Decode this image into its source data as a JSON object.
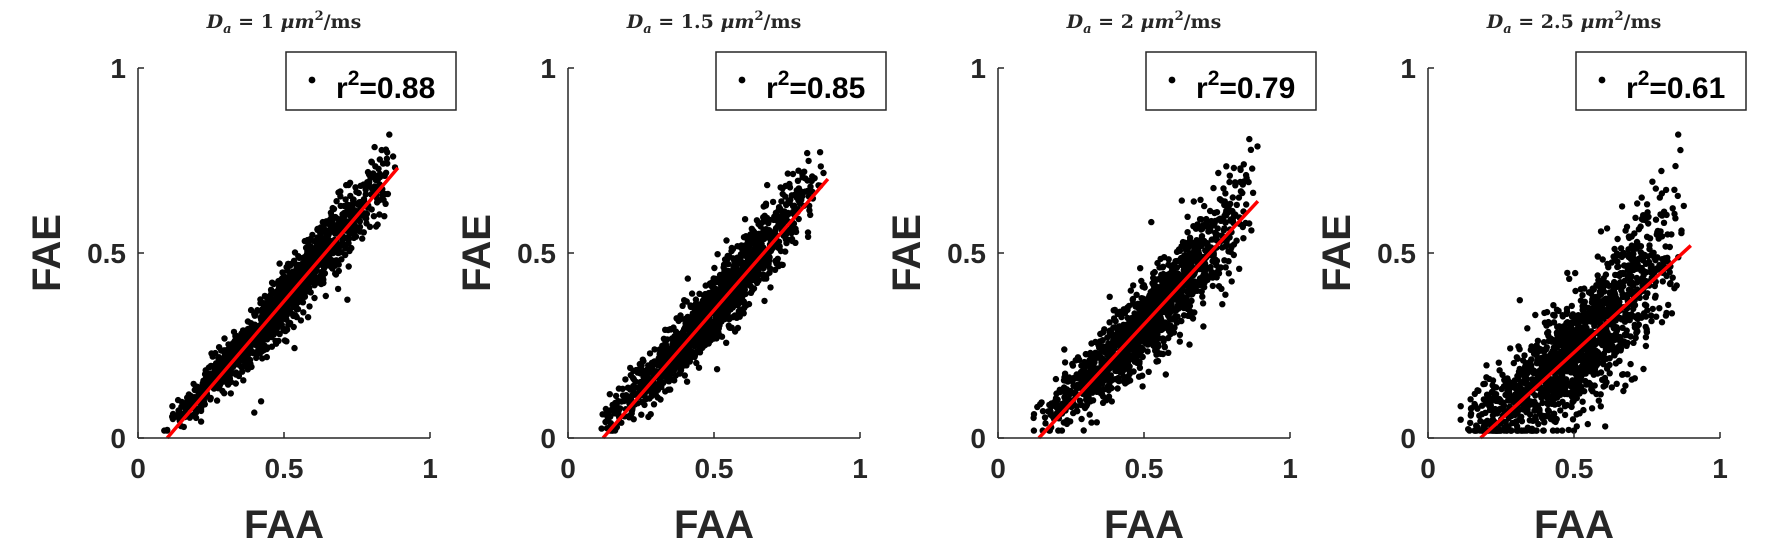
{
  "colors": {
    "points": "#000000",
    "fit_line": "#ff0000",
    "axes": "#262626",
    "legend_border": "#262626"
  },
  "chart_data": [
    {
      "type": "scatter",
      "title_parts": {
        "var": "D",
        "sub": "a",
        "value": "1",
        "unit": "μm",
        "sup": "2",
        "suffix": "/ms"
      },
      "xlabel": "FAA",
      "ylabel": "FAE",
      "xlim": [
        0,
        1
      ],
      "ylim": [
        0,
        1
      ],
      "xticks": [
        "0",
        "0.5",
        "1"
      ],
      "yticks": [
        "0",
        "0.5",
        "1"
      ],
      "legend": {
        "base": "r",
        "sup": "2",
        "value": "=0.88",
        "placement": "top-right"
      },
      "fit_line": [
        [
          0.1,
          0.0
        ],
        [
          0.89,
          0.73
        ]
      ],
      "point_cloud": {
        "x_range": [
          0.08,
          0.89
        ],
        "slope": 0.92,
        "intercept": -0.09,
        "curvature": 0.3,
        "spread": 0.035,
        "count": 1400
      }
    },
    {
      "type": "scatter",
      "title_parts": {
        "var": "D",
        "sub": "a",
        "value": "1.5",
        "unit": "μm",
        "sup": "2",
        "suffix": "/ms"
      },
      "xlabel": "FAA",
      "ylabel": "FAE",
      "xlim": [
        0,
        1
      ],
      "ylim": [
        0,
        1
      ],
      "xticks": [
        "0",
        "0.5",
        "1"
      ],
      "yticks": [
        "0",
        "0.5",
        "1"
      ],
      "legend": {
        "base": "r",
        "sup": "2",
        "value": "=0.85",
        "placement": "top-right"
      },
      "fit_line": [
        [
          0.12,
          0.0
        ],
        [
          0.89,
          0.7
        ]
      ],
      "point_cloud": {
        "x_range": [
          0.09,
          0.89
        ],
        "slope": 0.9,
        "intercept": -0.1,
        "curvature": 0.4,
        "spread": 0.04,
        "count": 1400
      }
    },
    {
      "type": "scatter",
      "title_parts": {
        "var": "D",
        "sub": "a",
        "value": "2",
        "unit": "μm",
        "sup": "2",
        "suffix": "/ms"
      },
      "xlabel": "FAA",
      "ylabel": "FAE",
      "xlim": [
        0,
        1
      ],
      "ylim": [
        0,
        1
      ],
      "xticks": [
        "0",
        "0.5",
        "1"
      ],
      "yticks": [
        "0",
        "0.5",
        "1"
      ],
      "legend": {
        "base": "r",
        "sup": "2",
        "value": "=0.79",
        "placement": "top-right"
      },
      "fit_line": [
        [
          0.14,
          0.0
        ],
        [
          0.89,
          0.64
        ]
      ],
      "point_cloud": {
        "x_range": [
          0.1,
          0.89
        ],
        "slope": 0.85,
        "intercept": -0.12,
        "curvature": 0.55,
        "spread": 0.05,
        "count": 1400
      }
    },
    {
      "type": "scatter",
      "title_parts": {
        "var": "D",
        "sub": "a",
        "value": "2.5",
        "unit": "μm",
        "sup": "2",
        "suffix": "/ms"
      },
      "xlabel": "FAA",
      "ylabel": "FAE",
      "xlim": [
        0,
        1
      ],
      "ylim": [
        0,
        1
      ],
      "xticks": [
        "0",
        "0.5",
        "1"
      ],
      "yticks": [
        "0",
        "0.5",
        "1"
      ],
      "legend": {
        "base": "r",
        "sup": "2",
        "value": "=0.61",
        "placement": "top-right"
      },
      "fit_line": [
        [
          0.18,
          0.0
        ],
        [
          0.9,
          0.52
        ]
      ],
      "point_cloud": {
        "x_range": [
          0.1,
          0.9
        ],
        "slope": 0.72,
        "intercept": -0.13,
        "curvature": 0.8,
        "spread": 0.07,
        "count": 1500
      }
    }
  ]
}
